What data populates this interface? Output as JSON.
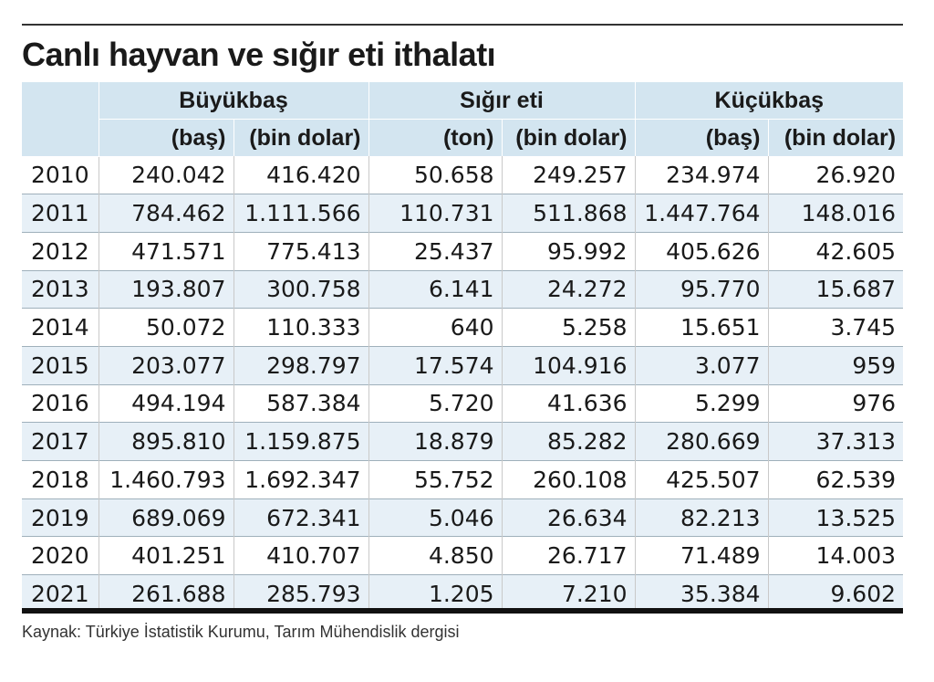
{
  "title": "Canlı hayvan ve sığır eti ithalatı",
  "source": "Kaynak: Türkiye İstatistik Kurumu, Tarım Mühendislik dergisi",
  "groups": [
    "Büyükbaş",
    "Sığır eti",
    "Küçükbaş"
  ],
  "units": [
    "(baş)",
    "(bin dolar)",
    "(ton)",
    "(bin dolar)",
    "(baş)",
    "(bin dolar)"
  ],
  "chart_data": {
    "type": "table",
    "title": "Canlı hayvan ve sığır eti ithalatı",
    "column_groups": [
      {
        "name": "Büyükbaş",
        "columns": [
          "(baş)",
          "(bin dolar)"
        ]
      },
      {
        "name": "Sığır eti",
        "columns": [
          "(ton)",
          "(bin dolar)"
        ]
      },
      {
        "name": "Küçükbaş",
        "columns": [
          "(baş)",
          "(bin dolar)"
        ]
      }
    ],
    "rows": [
      {
        "year": "2010",
        "cells": [
          "240.042",
          "416.420",
          "50.658",
          "249.257",
          "234.974",
          "26.920"
        ]
      },
      {
        "year": "2011",
        "cells": [
          "784.462",
          "1.111.566",
          "110.731",
          "511.868",
          "1.447.764",
          "148.016"
        ]
      },
      {
        "year": "2012",
        "cells": [
          "471.571",
          "775.413",
          "25.437",
          "95.992",
          "405.626",
          "42.605"
        ]
      },
      {
        "year": "2013",
        "cells": [
          "193.807",
          "300.758",
          "6.141",
          "24.272",
          "95.770",
          "15.687"
        ]
      },
      {
        "year": "2014",
        "cells": [
          "50.072",
          "110.333",
          "640",
          "5.258",
          "15.651",
          "3.745"
        ]
      },
      {
        "year": "2015",
        "cells": [
          "203.077",
          "298.797",
          "17.574",
          "104.916",
          "3.077",
          "959"
        ]
      },
      {
        "year": "2016",
        "cells": [
          "494.194",
          "587.384",
          "5.720",
          "41.636",
          "5.299",
          "976"
        ]
      },
      {
        "year": "2017",
        "cells": [
          "895.810",
          "1.159.875",
          "18.879",
          "85.282",
          "280.669",
          "37.313"
        ]
      },
      {
        "year": "2018",
        "cells": [
          "1.460.793",
          "1.692.347",
          "55.752",
          "260.108",
          "425.507",
          "62.539"
        ]
      },
      {
        "year": "2019",
        "cells": [
          "689.069",
          "672.341",
          "5.046",
          "26.634",
          "82.213",
          "13.525"
        ]
      },
      {
        "year": "2020",
        "cells": [
          "401.251",
          "410.707",
          "4.850",
          "26.717",
          "71.489",
          "14.003"
        ]
      },
      {
        "year": "2021",
        "cells": [
          "261.688",
          "285.793",
          "1.205",
          "7.210",
          "35.384",
          "9.602"
        ]
      }
    ]
  }
}
